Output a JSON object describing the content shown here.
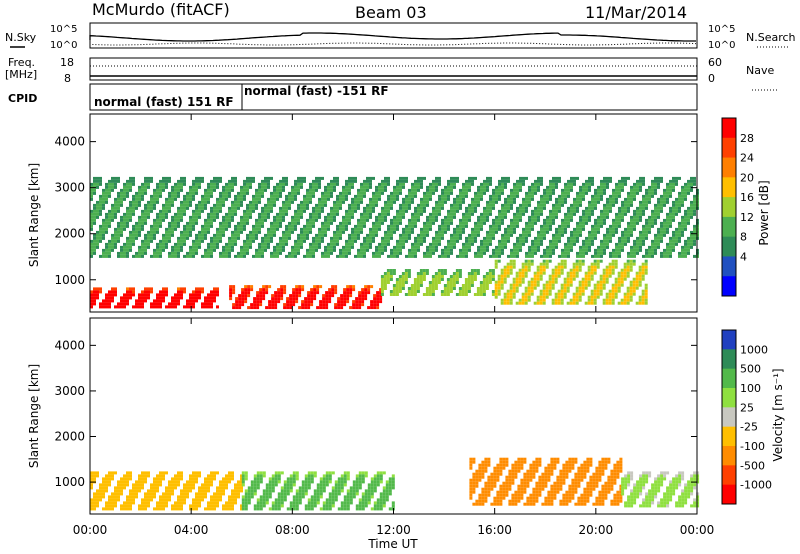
{
  "header": {
    "station": "McMurdo (fitACF)",
    "beam": "Beam 03",
    "date": "11/Mar/2014"
  },
  "side_labels": {
    "nsky": "N.Sky",
    "nsearch": "N.Search",
    "freq": "Freq.",
    "freq_unit": "[MHz]",
    "nave": "Nave",
    "cpid": "CPID"
  },
  "noise_panel": {
    "left_ticks": [
      "10^5",
      "10^0"
    ],
    "right_ticks": [
      "10^5",
      "10^0"
    ]
  },
  "freq_panel": {
    "left_ticks": [
      "18",
      "8"
    ],
    "right_ticks": [
      "60",
      "0"
    ]
  },
  "cpid_panel": {
    "segments": [
      {
        "label": "normal (fast) 151 RF",
        "start": "00:00"
      },
      {
        "label": "normal (fast) -151 RF",
        "start": "06:00"
      }
    ]
  },
  "colorbars": {
    "power": {
      "label": "Power [dB]",
      "ticks": [
        "28",
        "24",
        "20",
        "16",
        "12",
        "8",
        "4"
      ],
      "colors": [
        "#ff0000",
        "#ff4000",
        "#ff7f00",
        "#ffbf00",
        "#a0d030",
        "#4caf50",
        "#2e8b57",
        "#2050c0",
        "#0000ff"
      ]
    },
    "velocity": {
      "label": "Velocity [m s⁻¹]",
      "ticks": [
        "1000",
        "500",
        "100",
        "25",
        "-25",
        "-100",
        "-500",
        "-1000"
      ],
      "colors": [
        "#2040c0",
        "#2e8b57",
        "#52b94a",
        "#8fe040",
        "#c8c8c0",
        "#ffbf00",
        "#ff8c00",
        "#ff4000",
        "#ff0000"
      ]
    }
  },
  "chart_data": [
    {
      "type": "heatmap",
      "title": "Power",
      "ylabel": "Slant Range [km]",
      "xlabel": "",
      "y_ticks": [
        "1000",
        "2000",
        "3000",
        "4000"
      ],
      "ylim": [
        300,
        4600
      ],
      "xlim": [
        "00:00",
        "24:00"
      ],
      "series": [
        {
          "region": "strong echoes 00:00-05:00",
          "range_km": [
            400,
            900
          ],
          "power_db": 28
        },
        {
          "region": "strong echoes 05:30-11:30",
          "range_km": [
            400,
            950
          ],
          "power_db": 26
        },
        {
          "region": "moderate echoes 11:30-16:00",
          "range_km": [
            700,
            1300
          ],
          "power_db": 12
        },
        {
          "region": "moderate echoes 16:00-22:00",
          "range_km": [
            500,
            1500
          ],
          "power_db": 14
        },
        {
          "region": "scattered echoes",
          "range_km": [
            1500,
            3300
          ],
          "power_db": 8
        }
      ]
    },
    {
      "type": "heatmap",
      "title": "Velocity",
      "ylabel": "Slant Range [km]",
      "xlabel": "Time UT",
      "x_ticks": [
        "00:00",
        "04:00",
        "08:00",
        "12:00",
        "16:00",
        "20:00",
        "00:00"
      ],
      "y_ticks": [
        "1000",
        "2000",
        "3000",
        "4000"
      ],
      "ylim": [
        300,
        4600
      ],
      "xlim": [
        "00:00",
        "24:00"
      ],
      "series": [
        {
          "region": "00:00-06:00",
          "range_km": [
            400,
            1300
          ],
          "velocity_ms": -50
        },
        {
          "region": "06:00-12:00",
          "range_km": [
            400,
            1300
          ],
          "velocity_ms": 100
        },
        {
          "region": "15:00-21:00",
          "range_km": [
            500,
            1600
          ],
          "velocity_ms": -300
        },
        {
          "region": "21:00-24:00",
          "range_km": [
            500,
            1300
          ],
          "velocity_ms": 25
        }
      ]
    }
  ]
}
